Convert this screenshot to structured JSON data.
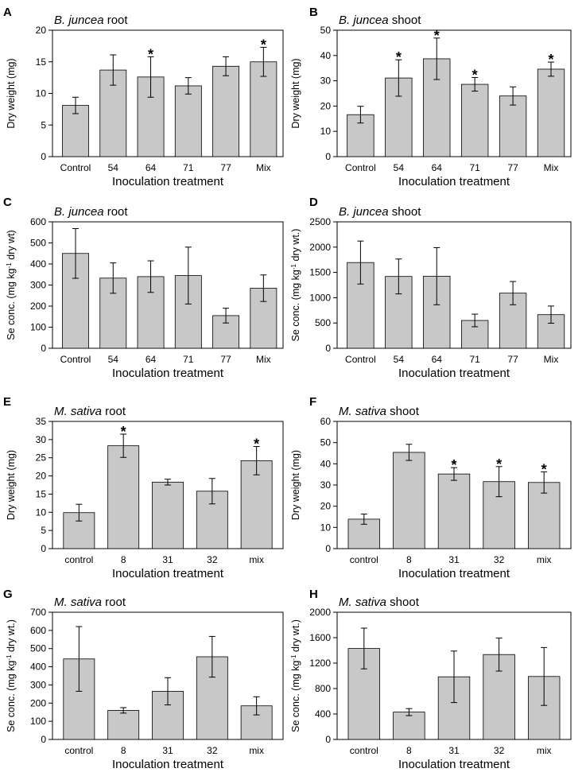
{
  "chart_data": [
    {
      "letter": "A",
      "type": "bar",
      "species": "B. juncea",
      "organ": "root",
      "ylabel": "Dry weight (mg)",
      "ylabel_super": null,
      "xlabel": "Inoculation treatment",
      "categories": [
        "Control",
        "54",
        "64",
        "71",
        "77",
        "Mix"
      ],
      "values": [
        8.1,
        13.7,
        12.6,
        11.2,
        14.3,
        15.0
      ],
      "errors": [
        1.3,
        2.4,
        3.2,
        1.3,
        1.5,
        2.3
      ],
      "significant": [
        false,
        false,
        true,
        false,
        false,
        true
      ],
      "ylim": [
        0,
        20
      ],
      "yticks": [
        0,
        5,
        10,
        15,
        20
      ]
    },
    {
      "letter": "B",
      "type": "bar",
      "species": "B. juncea",
      "organ": "shoot",
      "ylabel": "Dry weight (mg)",
      "ylabel_super": null,
      "xlabel": "Inoculation treatment",
      "categories": [
        "Control",
        "54",
        "64",
        "71",
        "77",
        "Mix"
      ],
      "values": [
        16.6,
        31.1,
        38.7,
        28.6,
        24.0,
        34.6
      ],
      "errors": [
        3.3,
        7.2,
        8.2,
        2.7,
        3.6,
        2.8
      ],
      "significant": [
        false,
        true,
        true,
        true,
        false,
        true
      ],
      "ylim": [
        0,
        50
      ],
      "yticks": [
        0,
        10,
        20,
        30,
        40,
        50
      ]
    },
    {
      "letter": "C",
      "type": "bar",
      "species": "B. juncea",
      "organ": "root",
      "ylabel": "Se conc. (mg kg",
      "ylabel_super": "-1",
      "ylabel_suffix": " dry wt)",
      "xlabel": "Inoculation treatment",
      "categories": [
        "Control",
        "54",
        "64",
        "71",
        "77",
        "Mix"
      ],
      "values": [
        450,
        333,
        340,
        345,
        155,
        285
      ],
      "errors": [
        118,
        72,
        75,
        135,
        35,
        63
      ],
      "significant": [
        false,
        false,
        false,
        false,
        false,
        false
      ],
      "ylim": [
        0,
        600
      ],
      "yticks": [
        0,
        100,
        200,
        300,
        400,
        500,
        600
      ]
    },
    {
      "letter": "D",
      "type": "bar",
      "species": "B. juncea",
      "organ": "shoot",
      "ylabel": "Se conc. (mg kg",
      "ylabel_super": "-1",
      "ylabel_suffix": " dry wt.)",
      "xlabel": "Inoculation treatment",
      "categories": [
        "Control",
        "54",
        "64",
        "71",
        "77",
        "Mix"
      ],
      "values": [
        1695,
        1420,
        1425,
        550,
        1090,
        665
      ],
      "errors": [
        425,
        345,
        565,
        125,
        230,
        170
      ],
      "significant": [
        false,
        false,
        false,
        false,
        false,
        false
      ],
      "ylim": [
        0,
        2500
      ],
      "yticks": [
        0,
        500,
        1000,
        1500,
        2000,
        2500
      ]
    },
    {
      "letter": "E",
      "type": "bar",
      "species": "M. sativa",
      "organ": "root",
      "ylabel": "Dry weight (mg)",
      "ylabel_super": null,
      "xlabel": "Inoculation treatment",
      "categories": [
        "control",
        "8",
        "31",
        "32",
        "mix"
      ],
      "values": [
        9.9,
        28.3,
        18.3,
        15.8,
        24.2
      ],
      "errors": [
        2.3,
        3.2,
        0.8,
        3.5,
        3.9
      ],
      "significant": [
        false,
        true,
        false,
        false,
        true
      ],
      "ylim": [
        0,
        35
      ],
      "yticks": [
        0,
        5,
        10,
        15,
        20,
        25,
        30,
        35
      ]
    },
    {
      "letter": "F",
      "type": "bar",
      "species": "M. sativa",
      "organ": "shoot",
      "ylabel": "Dry weight (mg)",
      "ylabel_super": null,
      "xlabel": "Inoculation treatment",
      "categories": [
        "control",
        "8",
        "31",
        "32",
        "mix"
      ],
      "values": [
        13.9,
        45.4,
        35.2,
        31.6,
        31.2
      ],
      "errors": [
        2.4,
        3.8,
        3.0,
        7.1,
        5.0
      ],
      "significant": [
        false,
        false,
        true,
        true,
        true
      ],
      "ylim": [
        0,
        60
      ],
      "yticks": [
        0,
        10,
        20,
        30,
        40,
        50,
        60
      ]
    },
    {
      "letter": "G",
      "type": "bar",
      "species": "M. sativa",
      "organ": "root",
      "ylabel": "Se conc. (mg kg",
      "ylabel_super": "-1",
      "ylabel_suffix": " dry wt.)",
      "xlabel": "Inoculation treatment",
      "categories": [
        "control",
        "8",
        "31",
        "32",
        "mix"
      ],
      "values": [
        443,
        160,
        265,
        455,
        185
      ],
      "errors": [
        178,
        15,
        75,
        112,
        50
      ],
      "significant": [
        false,
        false,
        false,
        false,
        false
      ],
      "ylim": [
        0,
        700
      ],
      "yticks": [
        0,
        100,
        200,
        300,
        400,
        500,
        600,
        700
      ]
    },
    {
      "letter": "H",
      "type": "bar",
      "species": "M. sativa",
      "organ": "shoot",
      "ylabel": "Se conc. (mg kg",
      "ylabel_super": "-1",
      "ylabel_suffix": " dry wt.)",
      "xlabel": "Inoculation treatment",
      "categories": [
        "control",
        "8",
        "31",
        "32",
        "mix"
      ],
      "values": [
        1430,
        430,
        985,
        1335,
        990
      ],
      "errors": [
        320,
        55,
        405,
        260,
        455
      ],
      "significant": [
        false,
        false,
        false,
        false,
        false
      ],
      "ylim": [
        0,
        2000
      ],
      "yticks": [
        0,
        400,
        800,
        1200,
        1600,
        2000
      ]
    }
  ],
  "significance_marker": "*"
}
